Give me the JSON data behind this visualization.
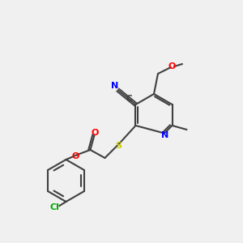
{
  "bg_color": "#f0f0f0",
  "bond_color": "#404040",
  "colors": {
    "N": "#0000ff",
    "O": "#ff0000",
    "S": "#cccc00",
    "Cl": "#00aa00",
    "C": "#404040"
  },
  "font_size": 7.5
}
